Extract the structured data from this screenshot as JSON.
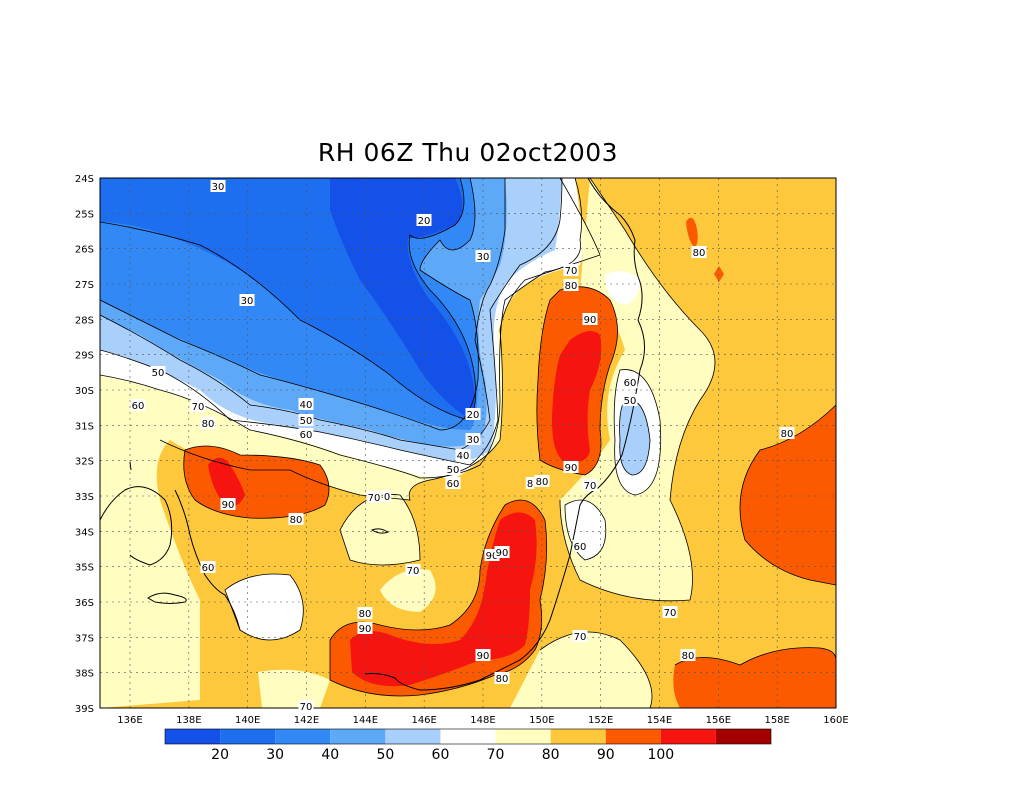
{
  "title": "RH 06Z Thu 02oct2003",
  "colors": {
    "c20": "#1e6ef0",
    "c30": "#3289f5",
    "c40": "#5ea8f8",
    "c50": "#a9d0fa",
    "c60": "#ffffff",
    "c70": "#fffdc0",
    "c80": "#fdc83c",
    "c90": "#fb5a00",
    "c100": "#f5140f",
    "cmax": "#a50000",
    "lowest": "#1451e8"
  },
  "lat_labels": [
    "24S",
    "25S",
    "26S",
    "27S",
    "28S",
    "29S",
    "30S",
    "31S",
    "32S",
    "33S",
    "34S",
    "35S",
    "36S",
    "37S",
    "38S",
    "39S"
  ],
  "lon_labels": [
    "136E",
    "138E",
    "140E",
    "142E",
    "144E",
    "146E",
    "148E",
    "150E",
    "152E",
    "154E",
    "156E",
    "158E",
    "160E"
  ],
  "colorbar": {
    "labels": [
      "20",
      "30",
      "40",
      "50",
      "60",
      "70",
      "80",
      "90",
      "100"
    ],
    "swatches": [
      "lowest",
      "c20",
      "c30",
      "c40",
      "c50",
      "c60",
      "c70",
      "c80",
      "c90",
      "c100",
      "cmax"
    ]
  },
  "contour_labels": [
    {
      "text": "30"
    },
    {
      "text": "20"
    },
    {
      "text": "30"
    },
    {
      "text": "30"
    },
    {
      "text": "50"
    },
    {
      "text": "60"
    },
    {
      "text": "70"
    },
    {
      "text": "80"
    },
    {
      "text": "40"
    },
    {
      "text": "50"
    },
    {
      "text": "60"
    },
    {
      "text": "20"
    },
    {
      "text": "30"
    },
    {
      "text": "40"
    },
    {
      "text": "50"
    },
    {
      "text": "60"
    },
    {
      "text": "70"
    },
    {
      "text": "80"
    },
    {
      "text": "90"
    },
    {
      "text": "80"
    },
    {
      "text": "90"
    },
    {
      "text": "8"
    },
    {
      "text": "80"
    },
    {
      "text": "70"
    },
    {
      "text": "60"
    },
    {
      "text": "50"
    },
    {
      "text": "80"
    },
    {
      "text": "80"
    },
    {
      "text": "90"
    },
    {
      "text": "80"
    },
    {
      "text": "70"
    },
    {
      "text": "0"
    },
    {
      "text": "60"
    },
    {
      "text": "70"
    },
    {
      "text": "90"
    },
    {
      "text": "90"
    },
    {
      "text": "80"
    },
    {
      "text": "90"
    },
    {
      "text": "60"
    },
    {
      "text": "90"
    },
    {
      "text": "80"
    },
    {
      "text": "70"
    },
    {
      "text": "70"
    },
    {
      "text": "80"
    },
    {
      "text": "70"
    }
  ]
}
